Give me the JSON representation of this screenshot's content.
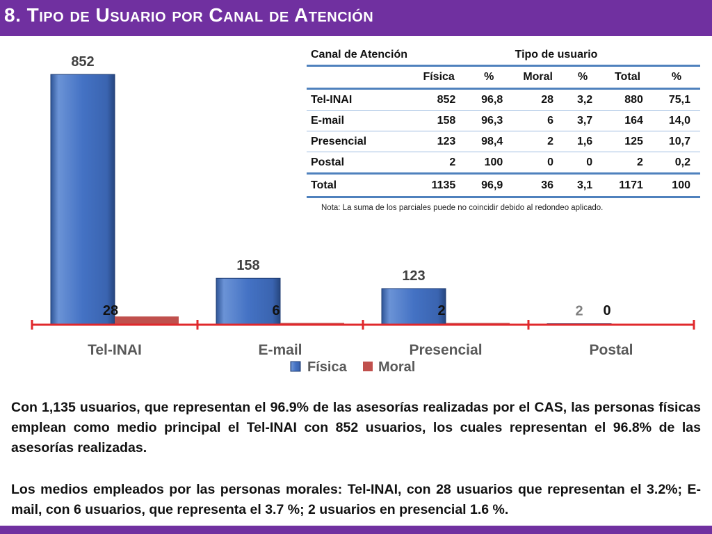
{
  "header": {
    "title": "8. Tipo de Usuario por Canal de Atención"
  },
  "colors": {
    "title_bar": "#7030a0",
    "fisica": "#4472c4",
    "moral": "#c0504d",
    "axis": "#e0282c",
    "table_rule": "#4f81bd"
  },
  "chart_data": {
    "type": "bar",
    "categories": [
      "Tel-INAI",
      "E-mail",
      "Presencial",
      "Postal"
    ],
    "series": [
      {
        "name": "Física",
        "values": [
          852,
          158,
          123,
          2
        ]
      },
      {
        "name": "Moral",
        "values": [
          28,
          6,
          2,
          0
        ]
      }
    ],
    "legend": {
      "position": "bottom",
      "labels": [
        "Física",
        "Moral"
      ]
    },
    "data_labels": true,
    "grid": false
  },
  "table": {
    "header_channel": "Canal de Atención",
    "header_group": "Tipo de usuario",
    "columns": [
      "Física",
      "%",
      "Moral",
      "%",
      "Total",
      "%"
    ],
    "rows": [
      {
        "label": "Tel-INAI",
        "values": [
          "852",
          "96,8",
          "28",
          "3,2",
          "880",
          "75,1"
        ]
      },
      {
        "label": "E-mail",
        "values": [
          "158",
          "96,3",
          "6",
          "3,7",
          "164",
          "14,0"
        ]
      },
      {
        "label": "Presencial",
        "values": [
          "123",
          "98,4",
          "2",
          "1,6",
          "125",
          "10,7"
        ]
      },
      {
        "label": "Postal",
        "values": [
          "2",
          "100",
          "0",
          "0",
          "2",
          "0,2"
        ]
      }
    ],
    "total": {
      "label": "Total",
      "values": [
        "1135",
        "96,9",
        "36",
        "3,1",
        "1171",
        "100"
      ]
    }
  },
  "note": "Nota: La suma de los parciales puede no coincidir debido al redondeo aplicado.",
  "paragraphs": [
    "Con 1,135 usuarios, que representan el 96.9% de las asesorías realizadas por el CAS, las personas físicas emplean como medio principal el Tel-INAI con 852 usuarios, los cuales representan el 96.8% de las asesorías realizadas.",
    "Los medios empleados por las personas morales: Tel-INAI, con 28 usuarios que representan el 3.2%; E-mail, con 6 usuarios, que representa el 3.7 %; 2 usuarios en presencial 1.6 %."
  ]
}
